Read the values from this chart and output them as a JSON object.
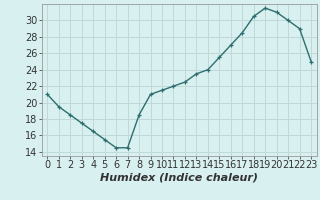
{
  "x": [
    0,
    1,
    2,
    3,
    4,
    5,
    6,
    7,
    8,
    9,
    10,
    11,
    12,
    13,
    14,
    15,
    16,
    17,
    18,
    19,
    20,
    21,
    22,
    23
  ],
  "y": [
    21,
    19.5,
    18.5,
    17.5,
    16.5,
    15.5,
    14.5,
    14.5,
    18.5,
    21,
    21.5,
    22,
    22.5,
    23.5,
    24,
    25.5,
    27,
    28.5,
    30.5,
    31.5,
    31,
    30,
    29,
    25
  ],
  "line_color": "#2d6e6e",
  "marker": "+",
  "bg_color": "#d8f0f0",
  "grid_color": "#c0d8d8",
  "xlabel": "Humidex (Indice chaleur)",
  "xlim": [
    -0.5,
    23.5
  ],
  "ylim": [
    13.5,
    32
  ],
  "yticks": [
    14,
    16,
    18,
    20,
    22,
    24,
    26,
    28,
    30
  ],
  "xticks": [
    0,
    1,
    2,
    3,
    4,
    5,
    6,
    7,
    8,
    9,
    10,
    11,
    12,
    13,
    14,
    15,
    16,
    17,
    18,
    19,
    20,
    21,
    22,
    23
  ],
  "tick_color": "#333333",
  "xlabel_fontsize": 8,
  "tick_fontsize": 7
}
